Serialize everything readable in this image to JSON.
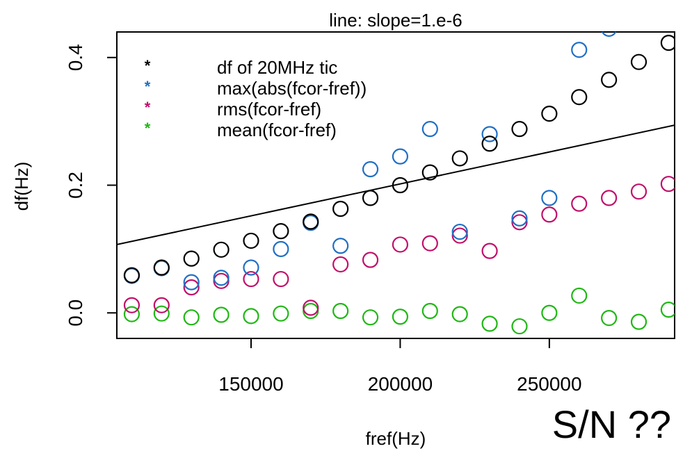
{
  "chart_data": {
    "type": "scatter",
    "title": "line: slope=1.e-6",
    "xlabel": "fref(Hz)",
    "ylabel": "df(Hz)",
    "xlim": [
      105000,
      292000
    ],
    "ylim": [
      -0.04,
      0.44
    ],
    "xticks": [
      150000,
      200000,
      250000
    ],
    "xtick_labels": [
      "150000",
      "200000",
      "250000"
    ],
    "yticks": [
      0.0,
      0.2,
      0.4
    ],
    "ytick_labels": [
      "0.0",
      "0.2",
      "0.4"
    ],
    "grid": false,
    "legend": {
      "placement": "top-left",
      "marker": "*"
    },
    "series": [
      {
        "name": "df of 20MHz tic",
        "color": "#000000",
        "x": [
          110000,
          120000,
          130000,
          140000,
          150000,
          160000,
          170000,
          180000,
          190000,
          200000,
          210000,
          220000,
          230000,
          240000,
          250000,
          260000,
          270000,
          280000,
          290000
        ],
        "y": [
          0.059,
          0.071,
          0.085,
          0.099,
          0.113,
          0.128,
          0.143,
          0.163,
          0.18,
          0.2,
          0.22,
          0.242,
          0.265,
          0.288,
          0.312,
          0.338,
          0.365,
          0.393,
          0.423
        ]
      },
      {
        "name": "max(abs(fcor-fref))",
        "color": "#1f6fc4",
        "x": [
          110000,
          120000,
          130000,
          140000,
          150000,
          160000,
          170000,
          180000,
          190000,
          200000,
          210000,
          220000,
          230000,
          240000,
          250000,
          260000,
          270000
        ],
        "y": [
          0.058,
          0.07,
          0.048,
          0.055,
          0.071,
          0.1,
          0.141,
          0.105,
          0.225,
          0.245,
          0.288,
          0.127,
          0.28,
          0.148,
          0.18,
          0.412,
          0.445
        ]
      },
      {
        "name": "rms(fcor-fref)",
        "color": "#c0106a",
        "x": [
          110000,
          120000,
          130000,
          140000,
          150000,
          160000,
          170000,
          180000,
          190000,
          200000,
          210000,
          220000,
          230000,
          240000,
          250000,
          260000,
          270000,
          280000,
          290000
        ],
        "y": [
          0.012,
          0.012,
          0.04,
          0.05,
          0.053,
          0.053,
          0.008,
          0.076,
          0.083,
          0.107,
          0.109,
          0.121,
          0.097,
          0.142,
          0.154,
          0.171,
          0.18,
          0.19,
          0.202
        ]
      },
      {
        "name": "mean(fcor-fref)",
        "color": "#1fb814",
        "x": [
          110000,
          120000,
          130000,
          140000,
          150000,
          160000,
          170000,
          180000,
          190000,
          200000,
          210000,
          220000,
          230000,
          240000,
          250000,
          260000,
          270000,
          280000,
          290000
        ],
        "y": [
          -0.002,
          -0.001,
          -0.007,
          -0.003,
          -0.005,
          -0.001,
          0.003,
          0.003,
          -0.007,
          -0.006,
          0.003,
          -0.002,
          -0.017,
          -0.021,
          0.0,
          0.027,
          -0.008,
          -0.014,
          0.005
        ]
      }
    ],
    "lines": [
      {
        "slope": 1e-06,
        "intercept": 0.002,
        "color": "#000000"
      }
    ],
    "annotation": "S/N ??"
  }
}
